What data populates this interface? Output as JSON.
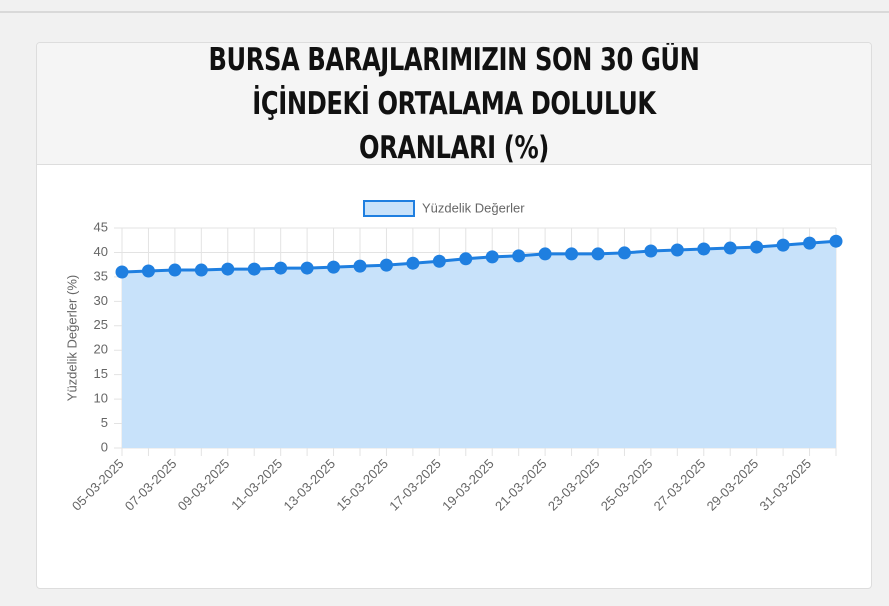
{
  "chart_data": {
    "type": "line",
    "title": "BURSA BARAJLARIMIZIN SON 30 GÜN İÇİNDEKİ ORTALAMA DOLULUK ORANLARI (%)",
    "y_label": "Yüzdelik Değerler (%)",
    "categories": [
      "05-03-2025",
      null,
      "07-03-2025",
      null,
      "09-03-2025",
      null,
      "11-03-2025",
      null,
      "13-03-2025",
      null,
      "15-03-2025",
      null,
      "17-03-2025",
      null,
      "19-03-2025",
      null,
      "21-03-2025",
      null,
      "23-03-2025",
      null,
      "25-03-2025",
      null,
      "27-03-2025",
      null,
      "29-03-2025",
      null,
      "31-03-2025",
      null
    ],
    "series": [
      {
        "name": "Yüzdelik Değerler",
        "color": "#1f7fe0",
        "fill": "#c8e2fa",
        "values": [
          36.0,
          36.2,
          36.4,
          36.4,
          36.6,
          36.6,
          36.8,
          36.8,
          37.0,
          37.2,
          37.4,
          37.8,
          38.2,
          38.7,
          39.1,
          39.3,
          39.7,
          39.7,
          39.7,
          39.9,
          40.3,
          40.5,
          40.7,
          40.9,
          41.1,
          41.5,
          41.9,
          42.3
        ]
      }
    ],
    "ylim": [
      0,
      45
    ],
    "yticks": [
      0,
      5,
      10,
      15,
      20,
      25,
      30,
      35,
      40,
      45
    ],
    "grid": true,
    "legend": "top"
  }
}
